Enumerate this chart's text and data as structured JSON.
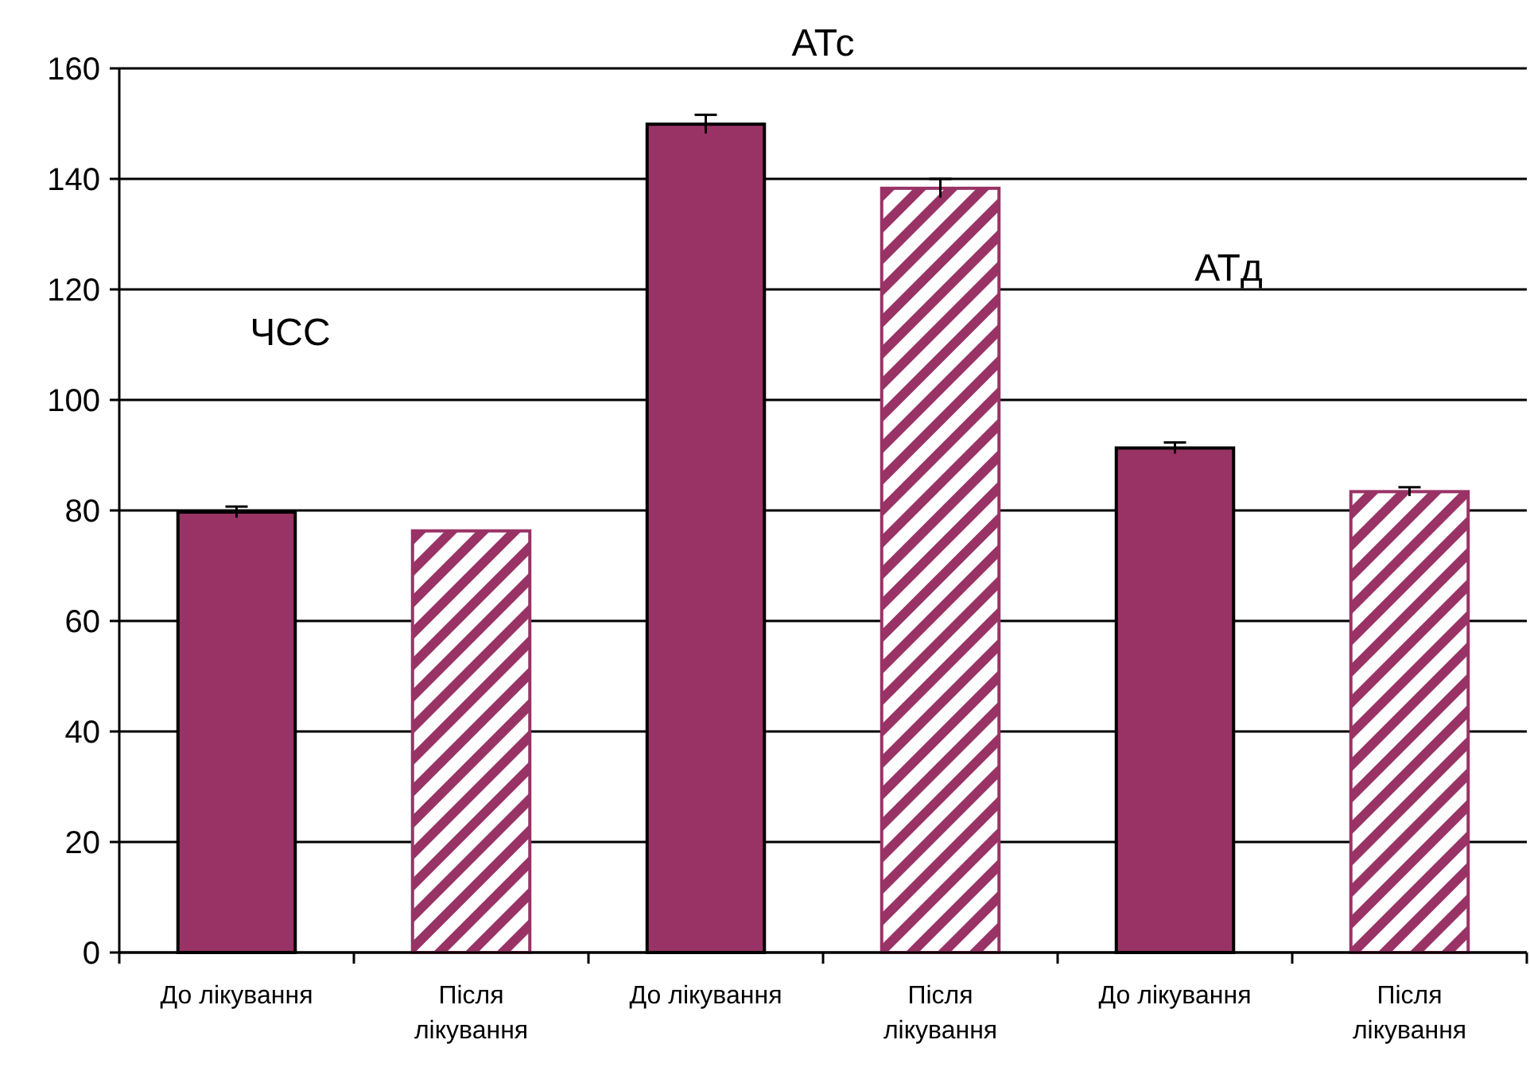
{
  "chart_data": {
    "type": "bar",
    "categories": [
      "До лікування",
      "Після лікування",
      "До лікування",
      "Після лікування",
      "До лікування",
      "Після лікування"
    ],
    "series": [
      {
        "color": "#993366",
        "values": [
          79.7,
          null,
          149.9,
          null,
          91.3,
          null
        ],
        "errors": [
          1,
          null,
          1.7,
          null,
          1,
          null
        ]
      },
      {
        "color": "#993366",
        "values": [
          null,
          76.3,
          null,
          138.3,
          null,
          83.4
        ],
        "errors": [
          null,
          null,
          null,
          1.7,
          null,
          0.8
        ]
      }
    ],
    "ylim": [
      0,
      160
    ],
    "yticks": [
      0,
      20,
      40,
      60,
      80,
      100,
      120,
      140,
      160
    ],
    "grid": "y",
    "annotations": [
      "ЧСС",
      "АТс",
      "АТд"
    ]
  }
}
